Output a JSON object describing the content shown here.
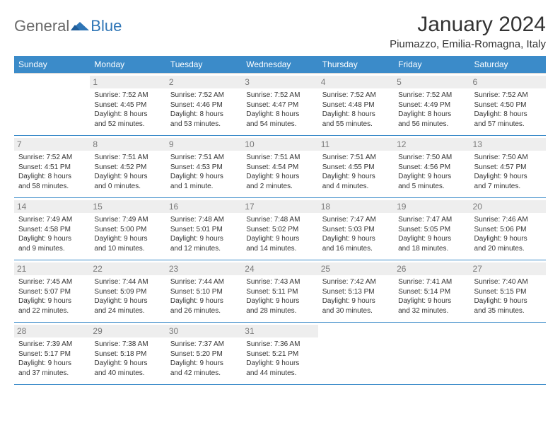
{
  "brand": {
    "part1": "General",
    "part2": "Blue"
  },
  "title": "January 2024",
  "location": "Piumazzo, Emilia-Romagna, Italy",
  "day_headers": [
    "Sunday",
    "Monday",
    "Tuesday",
    "Wednesday",
    "Thursday",
    "Friday",
    "Saturday"
  ],
  "colors": {
    "header_bg": "#3b8bc9",
    "header_text": "#ffffff",
    "daynum_bg": "#eeeeee",
    "daynum_text": "#7a7a7a",
    "row_divider": "#3b8bc9",
    "logo_accent": "#2e75b6",
    "logo_text": "#6a6a6a"
  },
  "layout": {
    "columns": 7,
    "rows": 5,
    "first_day_column_index": 1
  },
  "weeks": [
    [
      null,
      {
        "n": "1",
        "sr": "Sunrise: 7:52 AM",
        "ss": "Sunset: 4:45 PM",
        "d1": "Daylight: 8 hours",
        "d2": "and 52 minutes."
      },
      {
        "n": "2",
        "sr": "Sunrise: 7:52 AM",
        "ss": "Sunset: 4:46 PM",
        "d1": "Daylight: 8 hours",
        "d2": "and 53 minutes."
      },
      {
        "n": "3",
        "sr": "Sunrise: 7:52 AM",
        "ss": "Sunset: 4:47 PM",
        "d1": "Daylight: 8 hours",
        "d2": "and 54 minutes."
      },
      {
        "n": "4",
        "sr": "Sunrise: 7:52 AM",
        "ss": "Sunset: 4:48 PM",
        "d1": "Daylight: 8 hours",
        "d2": "and 55 minutes."
      },
      {
        "n": "5",
        "sr": "Sunrise: 7:52 AM",
        "ss": "Sunset: 4:49 PM",
        "d1": "Daylight: 8 hours",
        "d2": "and 56 minutes."
      },
      {
        "n": "6",
        "sr": "Sunrise: 7:52 AM",
        "ss": "Sunset: 4:50 PM",
        "d1": "Daylight: 8 hours",
        "d2": "and 57 minutes."
      }
    ],
    [
      {
        "n": "7",
        "sr": "Sunrise: 7:52 AM",
        "ss": "Sunset: 4:51 PM",
        "d1": "Daylight: 8 hours",
        "d2": "and 58 minutes."
      },
      {
        "n": "8",
        "sr": "Sunrise: 7:51 AM",
        "ss": "Sunset: 4:52 PM",
        "d1": "Daylight: 9 hours",
        "d2": "and 0 minutes."
      },
      {
        "n": "9",
        "sr": "Sunrise: 7:51 AM",
        "ss": "Sunset: 4:53 PM",
        "d1": "Daylight: 9 hours",
        "d2": "and 1 minute."
      },
      {
        "n": "10",
        "sr": "Sunrise: 7:51 AM",
        "ss": "Sunset: 4:54 PM",
        "d1": "Daylight: 9 hours",
        "d2": "and 2 minutes."
      },
      {
        "n": "11",
        "sr": "Sunrise: 7:51 AM",
        "ss": "Sunset: 4:55 PM",
        "d1": "Daylight: 9 hours",
        "d2": "and 4 minutes."
      },
      {
        "n": "12",
        "sr": "Sunrise: 7:50 AM",
        "ss": "Sunset: 4:56 PM",
        "d1": "Daylight: 9 hours",
        "d2": "and 5 minutes."
      },
      {
        "n": "13",
        "sr": "Sunrise: 7:50 AM",
        "ss": "Sunset: 4:57 PM",
        "d1": "Daylight: 9 hours",
        "d2": "and 7 minutes."
      }
    ],
    [
      {
        "n": "14",
        "sr": "Sunrise: 7:49 AM",
        "ss": "Sunset: 4:58 PM",
        "d1": "Daylight: 9 hours",
        "d2": "and 9 minutes."
      },
      {
        "n": "15",
        "sr": "Sunrise: 7:49 AM",
        "ss": "Sunset: 5:00 PM",
        "d1": "Daylight: 9 hours",
        "d2": "and 10 minutes."
      },
      {
        "n": "16",
        "sr": "Sunrise: 7:48 AM",
        "ss": "Sunset: 5:01 PM",
        "d1": "Daylight: 9 hours",
        "d2": "and 12 minutes."
      },
      {
        "n": "17",
        "sr": "Sunrise: 7:48 AM",
        "ss": "Sunset: 5:02 PM",
        "d1": "Daylight: 9 hours",
        "d2": "and 14 minutes."
      },
      {
        "n": "18",
        "sr": "Sunrise: 7:47 AM",
        "ss": "Sunset: 5:03 PM",
        "d1": "Daylight: 9 hours",
        "d2": "and 16 minutes."
      },
      {
        "n": "19",
        "sr": "Sunrise: 7:47 AM",
        "ss": "Sunset: 5:05 PM",
        "d1": "Daylight: 9 hours",
        "d2": "and 18 minutes."
      },
      {
        "n": "20",
        "sr": "Sunrise: 7:46 AM",
        "ss": "Sunset: 5:06 PM",
        "d1": "Daylight: 9 hours",
        "d2": "and 20 minutes."
      }
    ],
    [
      {
        "n": "21",
        "sr": "Sunrise: 7:45 AM",
        "ss": "Sunset: 5:07 PM",
        "d1": "Daylight: 9 hours",
        "d2": "and 22 minutes."
      },
      {
        "n": "22",
        "sr": "Sunrise: 7:44 AM",
        "ss": "Sunset: 5:09 PM",
        "d1": "Daylight: 9 hours",
        "d2": "and 24 minutes."
      },
      {
        "n": "23",
        "sr": "Sunrise: 7:44 AM",
        "ss": "Sunset: 5:10 PM",
        "d1": "Daylight: 9 hours",
        "d2": "and 26 minutes."
      },
      {
        "n": "24",
        "sr": "Sunrise: 7:43 AM",
        "ss": "Sunset: 5:11 PM",
        "d1": "Daylight: 9 hours",
        "d2": "and 28 minutes."
      },
      {
        "n": "25",
        "sr": "Sunrise: 7:42 AM",
        "ss": "Sunset: 5:13 PM",
        "d1": "Daylight: 9 hours",
        "d2": "and 30 minutes."
      },
      {
        "n": "26",
        "sr": "Sunrise: 7:41 AM",
        "ss": "Sunset: 5:14 PM",
        "d1": "Daylight: 9 hours",
        "d2": "and 32 minutes."
      },
      {
        "n": "27",
        "sr": "Sunrise: 7:40 AM",
        "ss": "Sunset: 5:15 PM",
        "d1": "Daylight: 9 hours",
        "d2": "and 35 minutes."
      }
    ],
    [
      {
        "n": "28",
        "sr": "Sunrise: 7:39 AM",
        "ss": "Sunset: 5:17 PM",
        "d1": "Daylight: 9 hours",
        "d2": "and 37 minutes."
      },
      {
        "n": "29",
        "sr": "Sunrise: 7:38 AM",
        "ss": "Sunset: 5:18 PM",
        "d1": "Daylight: 9 hours",
        "d2": "and 40 minutes."
      },
      {
        "n": "30",
        "sr": "Sunrise: 7:37 AM",
        "ss": "Sunset: 5:20 PM",
        "d1": "Daylight: 9 hours",
        "d2": "and 42 minutes."
      },
      {
        "n": "31",
        "sr": "Sunrise: 7:36 AM",
        "ss": "Sunset: 5:21 PM",
        "d1": "Daylight: 9 hours",
        "d2": "and 44 minutes."
      },
      null,
      null,
      null
    ]
  ]
}
